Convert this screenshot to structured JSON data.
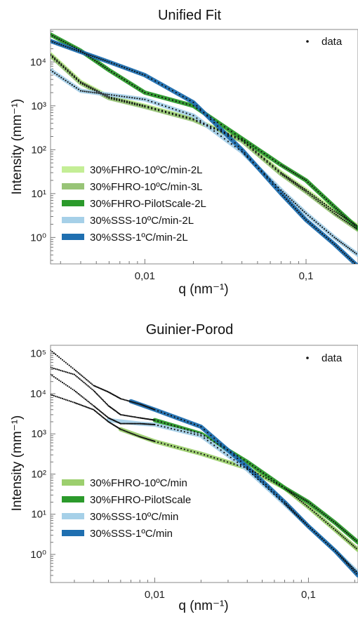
{
  "chart_data": [
    {
      "type": "scatter",
      "title": "Unified Fit",
      "xlabel": "q (nm⁻¹)",
      "ylabel": "Intensity (mm⁻¹)",
      "xscale": "log",
      "yscale": "log",
      "xlim": [
        0.0026,
        0.21
      ],
      "ylim": [
        0.25,
        55000
      ],
      "xtick_labels": [
        "0,01",
        "0,1"
      ],
      "ytick_labels": [
        "10⁰",
        "10¹",
        "10²",
        "10³",
        "10⁴"
      ],
      "legend_data_label": "data",
      "legend_location": "bottom-left",
      "series": [
        {
          "name": "30%FHRO-10ºC/min-2L",
          "color": "#c4ee96",
          "x": [
            0.0026,
            0.004,
            0.006,
            0.01,
            0.02,
            0.04,
            0.07,
            0.1,
            0.15,
            0.21
          ],
          "y": [
            15000,
            3500,
            1600,
            1000,
            500,
            170,
            30,
            12,
            4,
            1.8
          ]
        },
        {
          "name": "30%FHRO-10ºC/min-3L",
          "color": "#98c477",
          "x": [
            0.0026,
            0.004,
            0.006,
            0.01,
            0.02,
            0.04,
            0.07,
            0.1,
            0.15,
            0.21
          ],
          "y": [
            14000,
            3300,
            1500,
            950,
            480,
            160,
            28,
            11,
            3.5,
            1.5
          ]
        },
        {
          "name": "30%FHRO-PilotScale-2L",
          "color": "#2b9a2b",
          "x": [
            0.0026,
            0.004,
            0.006,
            0.01,
            0.02,
            0.04,
            0.07,
            0.1,
            0.15,
            0.21
          ],
          "y": [
            42000,
            18000,
            6500,
            2000,
            1000,
            180,
            45,
            20,
            5,
            1.6
          ]
        },
        {
          "name": "30%SSS-10ºC/min-2L",
          "color": "#a6d0e8",
          "x": [
            0.0026,
            0.004,
            0.006,
            0.01,
            0.02,
            0.04,
            0.07,
            0.1,
            0.15,
            0.21
          ],
          "y": [
            6500,
            2200,
            1800,
            1400,
            600,
            90,
            12,
            3.5,
            1,
            0.4
          ]
        },
        {
          "name": "30%SSS-1ºC/min-2L",
          "color": "#1f6fb0",
          "x": [
            0.0026,
            0.004,
            0.006,
            0.01,
            0.02,
            0.04,
            0.07,
            0.1,
            0.15,
            0.21
          ],
          "y": [
            30000,
            17000,
            10000,
            5000,
            1200,
            100,
            10,
            2.5,
            0.7,
            0.22
          ]
        }
      ]
    },
    {
      "type": "scatter",
      "title": "Guinier-Porod",
      "xlabel": "q (nm⁻¹)",
      "ylabel": "Intensity (mm⁻¹)",
      "xscale": "log",
      "yscale": "log",
      "xlim": [
        0.0021,
        0.21
      ],
      "ylim": [
        0.2,
        160000
      ],
      "xtick_labels": [
        "0,01",
        "0,1"
      ],
      "ytick_labels": [
        "10⁰",
        "10¹",
        "10²",
        "10³",
        "10⁴",
        "10⁵"
      ],
      "legend_data_label": "data",
      "legend_location": "bottom-left",
      "data_points": [
        {
          "x": [
            0.0021,
            0.003,
            0.004,
            0.005,
            0.006,
            0.008,
            0.01,
            0.02,
            0.04,
            0.07,
            0.1,
            0.15,
            0.21
          ],
          "y": [
            120000,
            40000,
            16000,
            11000,
            7500,
            5500,
            4000,
            1500,
            150,
            20,
            5,
            1.2,
            0.3
          ]
        },
        {
          "x": [
            0.0021,
            0.003,
            0.004,
            0.005,
            0.006,
            0.008,
            0.01,
            0.02,
            0.04,
            0.07,
            0.1,
            0.15,
            0.21
          ],
          "y": [
            45000,
            30000,
            12000,
            5000,
            3000,
            2500,
            2200,
            1000,
            200,
            45,
            20,
            6,
            2
          ]
        },
        {
          "x": [
            0.0021,
            0.003,
            0.004,
            0.005,
            0.006,
            0.008,
            0.01,
            0.02,
            0.04,
            0.07,
            0.1,
            0.15,
            0.21
          ],
          "y": [
            30000,
            12000,
            5000,
            2500,
            1800,
            1800,
            1700,
            900,
            130,
            18,
            5,
            1.2,
            0.35
          ]
        },
        {
          "x": [
            0.0021,
            0.003,
            0.004,
            0.005,
            0.006,
            0.008,
            0.01,
            0.02,
            0.04,
            0.07,
            0.1,
            0.15,
            0.21
          ],
          "y": [
            9500,
            6000,
            4000,
            2000,
            1300,
            850,
            650,
            320,
            140,
            45,
            15,
            4,
            1.3
          ]
        }
      ],
      "series": [
        {
          "name": "30%FHRO-10ºC/min",
          "color": "#9ccf6e",
          "x": [
            0.006,
            0.01,
            0.02,
            0.04,
            0.07,
            0.1,
            0.15,
            0.21
          ],
          "y": [
            1300,
            650,
            320,
            140,
            45,
            15,
            4,
            1.3
          ]
        },
        {
          "name": "30%FHRO-PilotScale",
          "color": "#2b9a2b",
          "x": [
            0.01,
            0.02,
            0.04,
            0.07,
            0.1,
            0.15,
            0.21
          ],
          "y": [
            2200,
            1000,
            200,
            45,
            20,
            6,
            2
          ]
        },
        {
          "name": "30%SSS-10ºC/min",
          "color": "#a6d0e8",
          "x": [
            0.005,
            0.008,
            0.01,
            0.02,
            0.04,
            0.07,
            0.1,
            0.15,
            0.21
          ],
          "y": [
            2200,
            1800,
            1700,
            900,
            130,
            18,
            5,
            1.2,
            0.35
          ]
        },
        {
          "name": "30%SSS-1ºC/min",
          "color": "#1f6fb0",
          "x": [
            0.007,
            0.01,
            0.02,
            0.04,
            0.07,
            0.1,
            0.15,
            0.21
          ],
          "y": [
            6500,
            4000,
            1500,
            150,
            20,
            5,
            1.2,
            0.3
          ]
        }
      ]
    }
  ]
}
